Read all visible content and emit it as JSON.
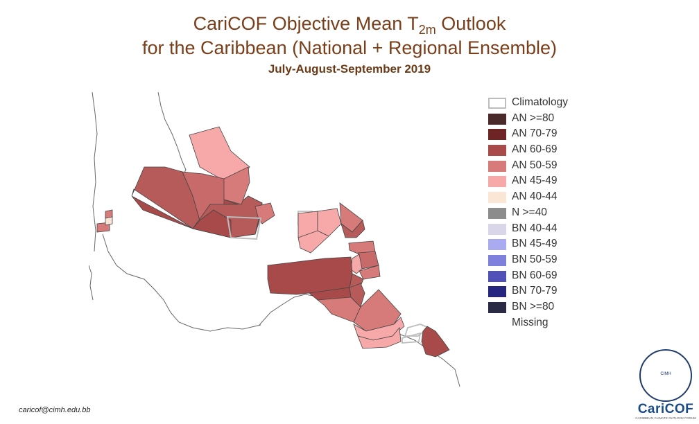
{
  "title": {
    "line1_pre": "CariCOF Objective Mean T",
    "line1_sub": "2m",
    "line1_post": " Outlook",
    "line2": "for the Caribbean (National + Regional Ensemble)",
    "period": "July-August-September 2019"
  },
  "colors": {
    "coast": "#555555",
    "region_border": "#444444",
    "missing_outline": "#bdbdbd"
  },
  "legend": [
    {
      "label": "Climatology",
      "color": "#ffffff",
      "border": "#bdbdbd"
    },
    {
      "label": "AN  >=80",
      "color": "#4a2a2a",
      "border": "#4a2a2a"
    },
    {
      "label": "AN 70-79",
      "color": "#6e2424",
      "border": "#6e2424"
    },
    {
      "label": "AN 60-69",
      "color": "#a84a4a",
      "border": "#a84a4a"
    },
    {
      "label": "AN 50-59",
      "color": "#d77a7a",
      "border": "#d77a7a"
    },
    {
      "label": "AN 45-49",
      "color": "#f7a8a8",
      "border": "#f7a8a8"
    },
    {
      "label": "AN 40-44",
      "color": "#fbe6d6",
      "border": "#fbe6d6"
    },
    {
      "label": "N  >=40",
      "color": "#8c8c8c",
      "border": "#8c8c8c"
    },
    {
      "label": "BN 40-44",
      "color": "#d9d6ea",
      "border": "#d9d6ea"
    },
    {
      "label": "BN 45-49",
      "color": "#aaaaf0",
      "border": "#aaaaf0"
    },
    {
      "label": "BN 50-59",
      "color": "#7f7fdc",
      "border": "#7f7fdc"
    },
    {
      "label": "BN 60-69",
      "color": "#5050b8",
      "border": "#5050b8"
    },
    {
      "label": "BN 70-79",
      "color": "#262680",
      "border": "#262680"
    },
    {
      "label": "BN  >=80",
      "color": "#2a2a44",
      "border": "#2a2a44"
    },
    {
      "label": "Missing",
      "color": "none",
      "border": "none"
    }
  ],
  "footer_email": "caricof@cimh.edu.bb",
  "logo": {
    "org": "CIMH",
    "brand": "CariCOF",
    "tagline": "CARIBBEAN CLIMATE OUTLOOK FORUM"
  }
}
